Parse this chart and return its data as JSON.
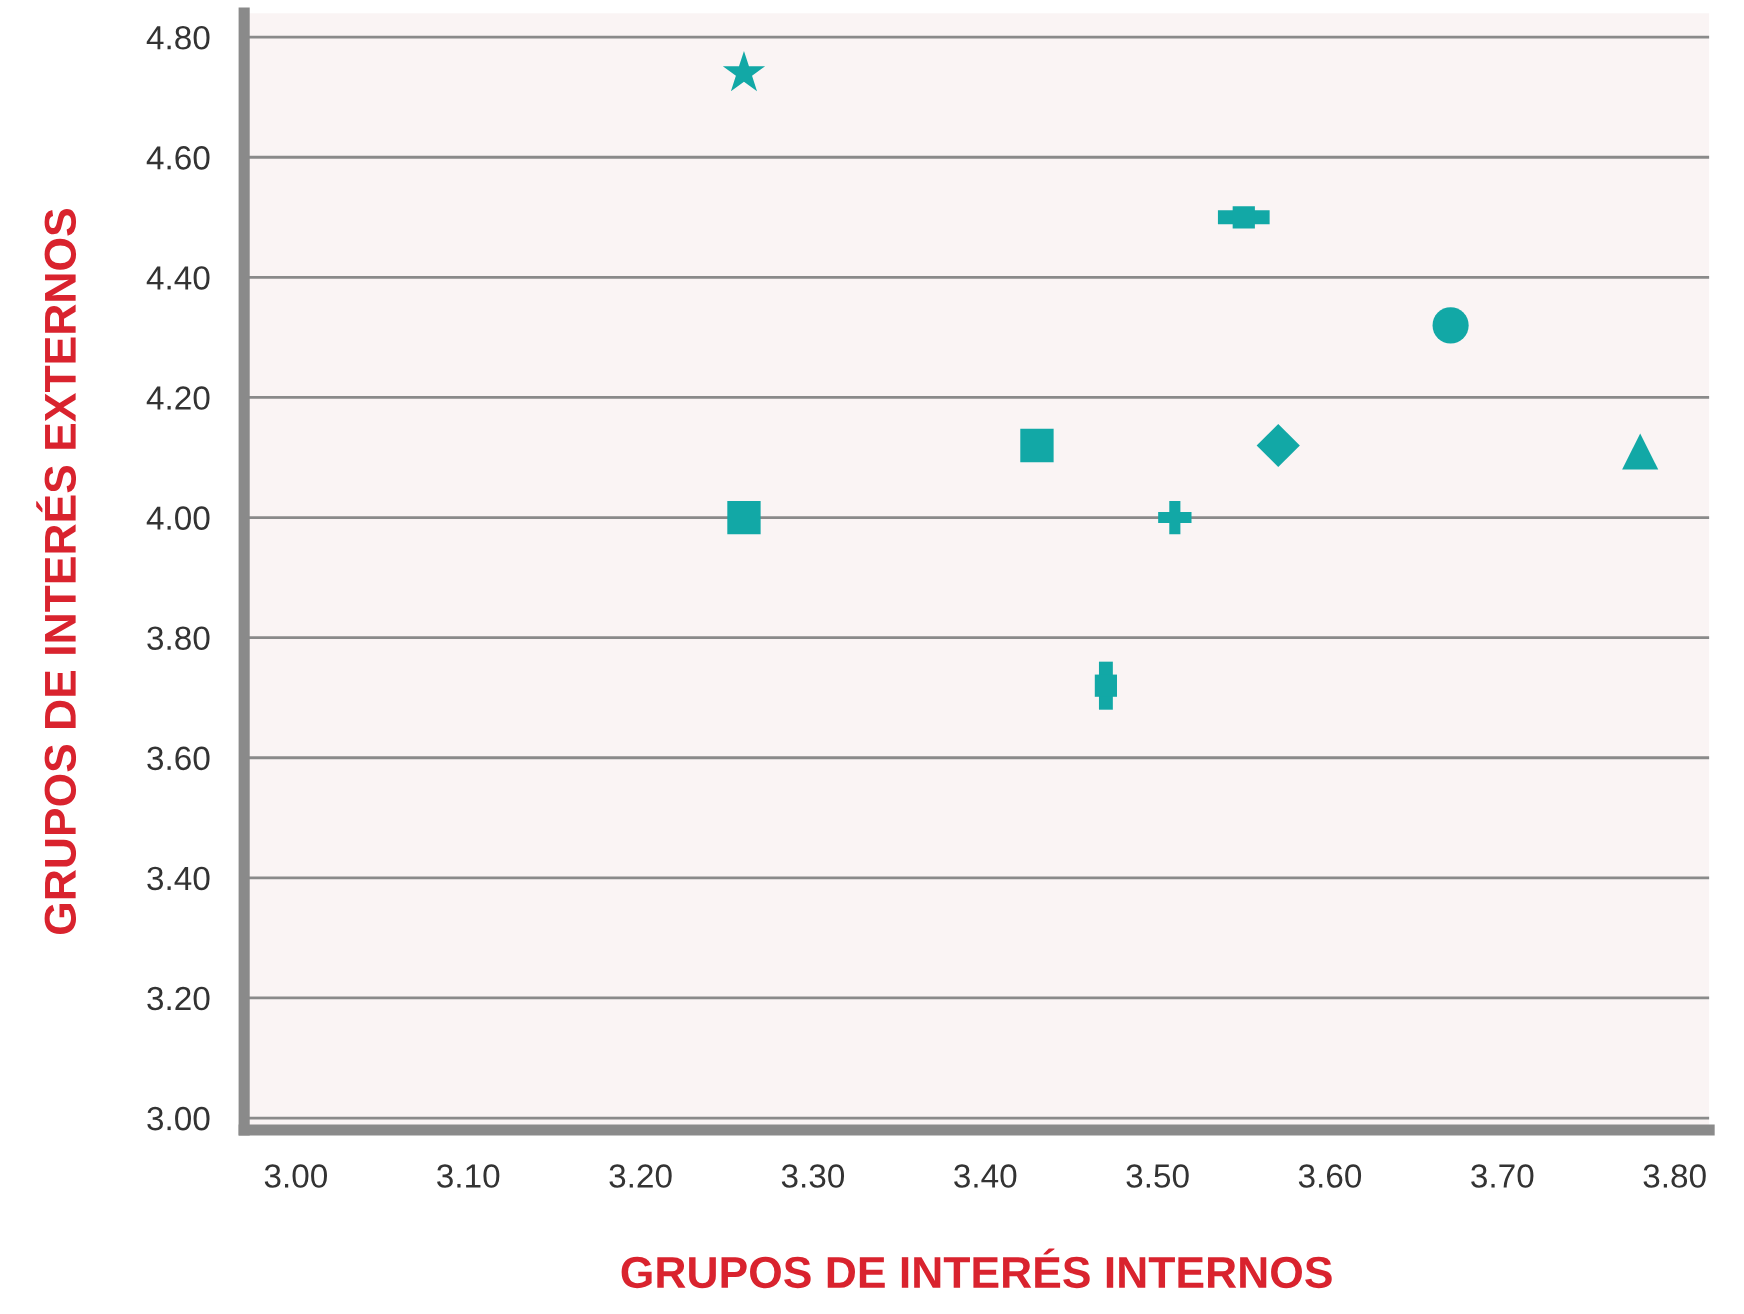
{
  "chart_data": {
    "type": "scatter",
    "xlabel": "GRUPOS DE INTERÉS INTERNOS",
    "ylabel": "GRUPOS DE INTERÉS EXTERNOS",
    "xlim": [
      2.97,
      3.82
    ],
    "ylim": [
      2.98,
      4.84
    ],
    "xticks": [
      {
        "value": 3.0,
        "label": "3.00"
      },
      {
        "value": 3.1,
        "label": "3.10"
      },
      {
        "value": 3.2,
        "label": "3.20"
      },
      {
        "value": 3.3,
        "label": "3.30"
      },
      {
        "value": 3.4,
        "label": "3.40"
      },
      {
        "value": 3.5,
        "label": "3.50"
      },
      {
        "value": 3.6,
        "label": "3.60"
      },
      {
        "value": 3.7,
        "label": "3.70"
      },
      {
        "value": 3.8,
        "label": "3.80"
      }
    ],
    "yticks": [
      {
        "value": 3.0,
        "label": "3.00"
      },
      {
        "value": 3.2,
        "label": "3.20"
      },
      {
        "value": 3.4,
        "label": "3.40"
      },
      {
        "value": 3.6,
        "label": "3.60"
      },
      {
        "value": 3.8,
        "label": "3.80"
      },
      {
        "value": 4.0,
        "label": "4.00"
      },
      {
        "value": 4.2,
        "label": "4.20"
      },
      {
        "value": 4.4,
        "label": "4.40"
      },
      {
        "value": 4.6,
        "label": "4.60"
      },
      {
        "value": 4.8,
        "label": "4.80"
      }
    ],
    "grid": "y",
    "legend": false,
    "series": [
      {
        "color": "#12a8a6",
        "marker": "star",
        "x": [
          3.26
        ],
        "values": [
          4.74
        ]
      },
      {
        "color": "#12a8a6",
        "marker": "square",
        "x": [
          3.26
        ],
        "values": [
          4.0
        ]
      },
      {
        "color": "#12a8a6",
        "marker": "square",
        "x": [
          3.43
        ],
        "values": [
          4.12
        ]
      },
      {
        "color": "#12a8a6",
        "marker": "square",
        "x": [
          3.47
        ],
        "values": [
          3.72
        ],
        "errors": [
          0.04
        ]
      },
      {
        "color": "#12a8a6",
        "marker": "cross",
        "x": [
          3.51
        ],
        "values": [
          4.0
        ]
      },
      {
        "color": "#12a8a6",
        "marker": "square",
        "x": [
          3.55
        ],
        "values": [
          4.5
        ],
        "xerrors": [
          0.015
        ]
      },
      {
        "color": "#12a8a6",
        "marker": "diamond",
        "x": [
          3.57
        ],
        "values": [
          4.12
        ]
      },
      {
        "color": "#12a8a6",
        "marker": "circle",
        "x": [
          3.67
        ],
        "values": [
          4.32
        ]
      },
      {
        "color": "#12a8a6",
        "marker": "triangle",
        "x": [
          3.78
        ],
        "values": [
          4.11
        ]
      }
    ]
  }
}
